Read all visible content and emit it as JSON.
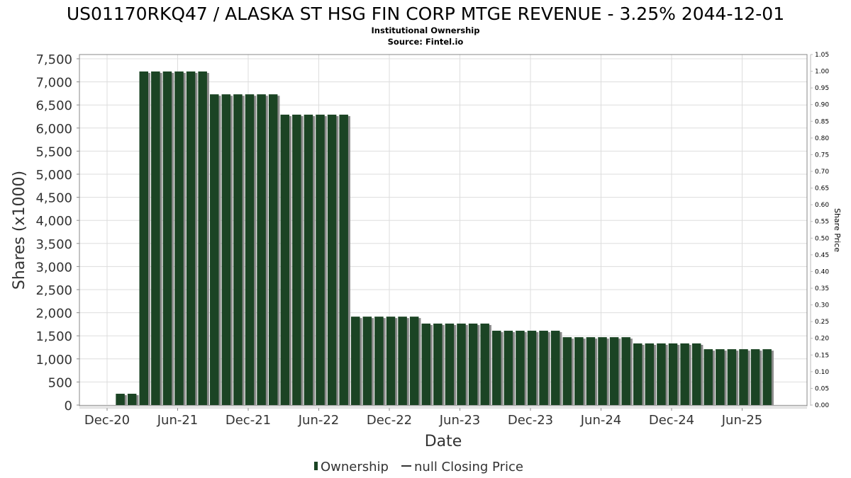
{
  "chart_data": {
    "type": "bar",
    "title": "US01170RKQ47 / ALASKA ST HSG FIN CORP MTGE REVENUE - 3.25% 2044-12-01",
    "subtitle": "Institutional Ownership",
    "source": "Source: Fintel.io",
    "xlabel": "Date",
    "ylabel": "Shares (x1000)",
    "y2label": "Share Price",
    "ylim": [
      0,
      7500
    ],
    "y2lim": [
      0,
      1.05
    ],
    "yticks": [
      "0",
      "500",
      "1,000",
      "1,500",
      "2,000",
      "2,500",
      "3,000",
      "3,500",
      "4,000",
      "4,500",
      "5,000",
      "5,500",
      "6,000",
      "6,500",
      "7,000",
      "7,500"
    ],
    "y2ticks": [
      "0.00",
      "0.05",
      "0.10",
      "0.15",
      "0.20",
      "0.25",
      "0.30",
      "0.35",
      "0.40",
      "0.45",
      "0.50",
      "0.55",
      "0.60",
      "0.65",
      "0.70",
      "0.75",
      "0.80",
      "0.85",
      "0.90",
      "0.95",
      "1.00",
      "1.05"
    ],
    "xticks": [
      "Dec-20",
      "Jun-21",
      "Dec-21",
      "Jun-22",
      "Dec-22",
      "Jun-23",
      "Dec-23",
      "Jun-24",
      "Dec-24",
      "Jun-25"
    ],
    "grid": true,
    "legend_position": "bottom",
    "legend": [
      {
        "label": "Ownership",
        "color": "#1b4424"
      },
      {
        "label": "null Closing Price",
        "color": "#333333"
      }
    ],
    "series": [
      {
        "name": "Ownership",
        "color": "#1b4424",
        "start_month_offset": 1,
        "values": [
          245,
          245,
          7225,
          7225,
          7225,
          7225,
          7225,
          7225,
          6730,
          6730,
          6730,
          6730,
          6730,
          6730,
          6290,
          6290,
          6290,
          6290,
          6290,
          6290,
          1915,
          1915,
          1915,
          1915,
          1915,
          1915,
          1765,
          1765,
          1765,
          1765,
          1765,
          1765,
          1610,
          1610,
          1610,
          1610,
          1610,
          1610,
          1470,
          1470,
          1470,
          1470,
          1470,
          1470,
          1335,
          1335,
          1335,
          1335,
          1335,
          1335,
          1210,
          1210,
          1210,
          1210,
          1210,
          1210
        ]
      }
    ]
  }
}
